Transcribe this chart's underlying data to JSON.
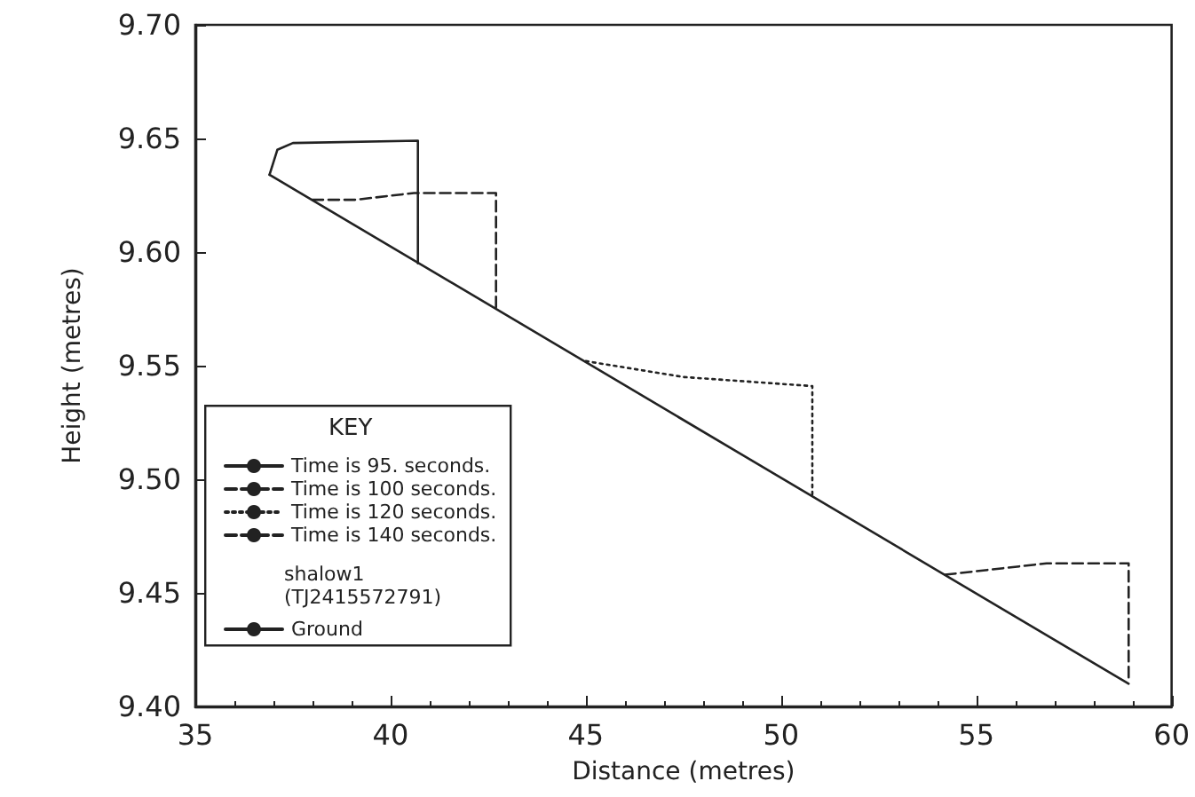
{
  "chart_data": {
    "type": "line",
    "xlabel": "Distance (metres)",
    "ylabel": "Height (metres)",
    "legend_title": "KEY",
    "annotations": [
      "shalow1\n(TJ2415572791)"
    ],
    "xlim": [
      35,
      60
    ],
    "xticks": [
      35,
      40,
      45,
      50,
      55,
      60
    ],
    "ylim": [
      9.4,
      9.7
    ],
    "yticks": [
      {
        "value": 9.4,
        "label": "9.40"
      },
      {
        "value": 9.45,
        "label": "9.45"
      },
      {
        "value": 9.5,
        "label": "9.50"
      },
      {
        "value": 9.55,
        "label": "9.55"
      },
      {
        "value": 9.6,
        "label": "9.60"
      },
      {
        "value": 9.65,
        "label": "9.65"
      },
      {
        "value": 9.7,
        "label": "9.70"
      }
    ],
    "grid": false,
    "legend": "bottom left",
    "marker": "none",
    "series": [
      {
        "name": "Time is 95. seconds.",
        "color": "#222222",
        "line_style": "solid",
        "x": [
          36.9,
          37.1,
          37.5,
          40.7,
          40.7
        ],
        "values": [
          9.634,
          9.645,
          9.648,
          9.649,
          9.595
        ]
      },
      {
        "name": "Time is 100 seconds.",
        "color": "#222222",
        "line_style": "dashed",
        "x": [
          38,
          39.1,
          40.6,
          42.7,
          42.7
        ],
        "values": [
          9.623,
          9.623,
          9.626,
          9.626,
          9.575
        ]
      },
      {
        "name": "Time is 120 seconds.",
        "color": "#222222",
        "line_style": "dotted",
        "x": [
          45,
          47.5,
          50.8,
          50.8
        ],
        "values": [
          9.552,
          9.545,
          9.541,
          9.493
        ]
      },
      {
        "name": "Time is 140 seconds.",
        "color": "#222222",
        "line_style": "dashed",
        "x": [
          54.2,
          56.8,
          58.9,
          58.9
        ],
        "values": [
          9.458,
          9.463,
          9.463,
          9.412
        ]
      },
      {
        "name": "Ground",
        "color": "#222222",
        "line_style": "solid",
        "x": [
          36.9,
          58.9
        ],
        "values": [
          9.634,
          9.41
        ]
      }
    ]
  }
}
